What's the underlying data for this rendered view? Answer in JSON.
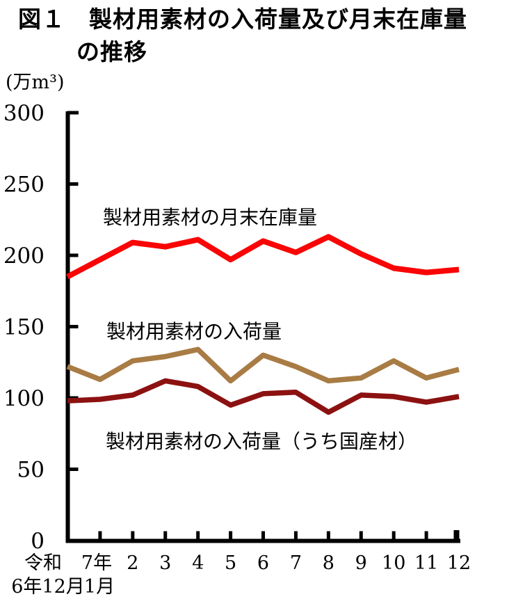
{
  "figure": {
    "title_line1": "図１　製材用素材の入荷量及び月末在庫量",
    "title_line2": "の推移",
    "unit_label": "(万m³)"
  },
  "colors": {
    "inventory_line": "#FA0505",
    "arrivals_line": "#A87C44",
    "domestic_line": "#8C1111",
    "axis": "#000000",
    "background": "#FFFFFF"
  },
  "chart_data": {
    "type": "line",
    "title": "製材用素材の入荷量及び月末在庫量の推移",
    "ylabel_unit": "万m³",
    "ylim": [
      0,
      300
    ],
    "y_ticks": [
      0,
      50,
      100,
      150,
      200,
      250,
      300
    ],
    "grid": false,
    "legend": "inline-labels",
    "x_categories": [
      "令和6年12月",
      "7年1月",
      "2月",
      "3月",
      "4月",
      "5月",
      "6月",
      "7月",
      "8月",
      "9月",
      "10月",
      "11月",
      "12月"
    ],
    "x_tick_row1": [
      "令和",
      "7年",
      "2",
      "3",
      "4",
      "5",
      "6",
      "7",
      "8",
      "9",
      "10",
      "11",
      "12"
    ],
    "x_tick_row2": [
      "6年12月",
      "1月"
    ],
    "series": [
      {
        "id": "inventory",
        "name": "製材用素材の月末在庫量",
        "color": "#FA0505",
        "values": [
          185,
          197,
          209,
          206,
          211,
          197,
          210,
          202,
          213,
          201,
          191,
          188,
          190
        ]
      },
      {
        "id": "arrivals",
        "name": "製材用素材の入荷量",
        "color": "#A87C44",
        "values": [
          122,
          113,
          126,
          129,
          134,
          112,
          130,
          122,
          112,
          114,
          126,
          114,
          120
        ]
      },
      {
        "id": "domestic_arrivals",
        "name": "製材用素材の入荷量（うち国産材）",
        "color": "#8C1111",
        "values": [
          98,
          99,
          102,
          112,
          108,
          95,
          103,
          104,
          90,
          102,
          101,
          97,
          101
        ]
      }
    ]
  }
}
